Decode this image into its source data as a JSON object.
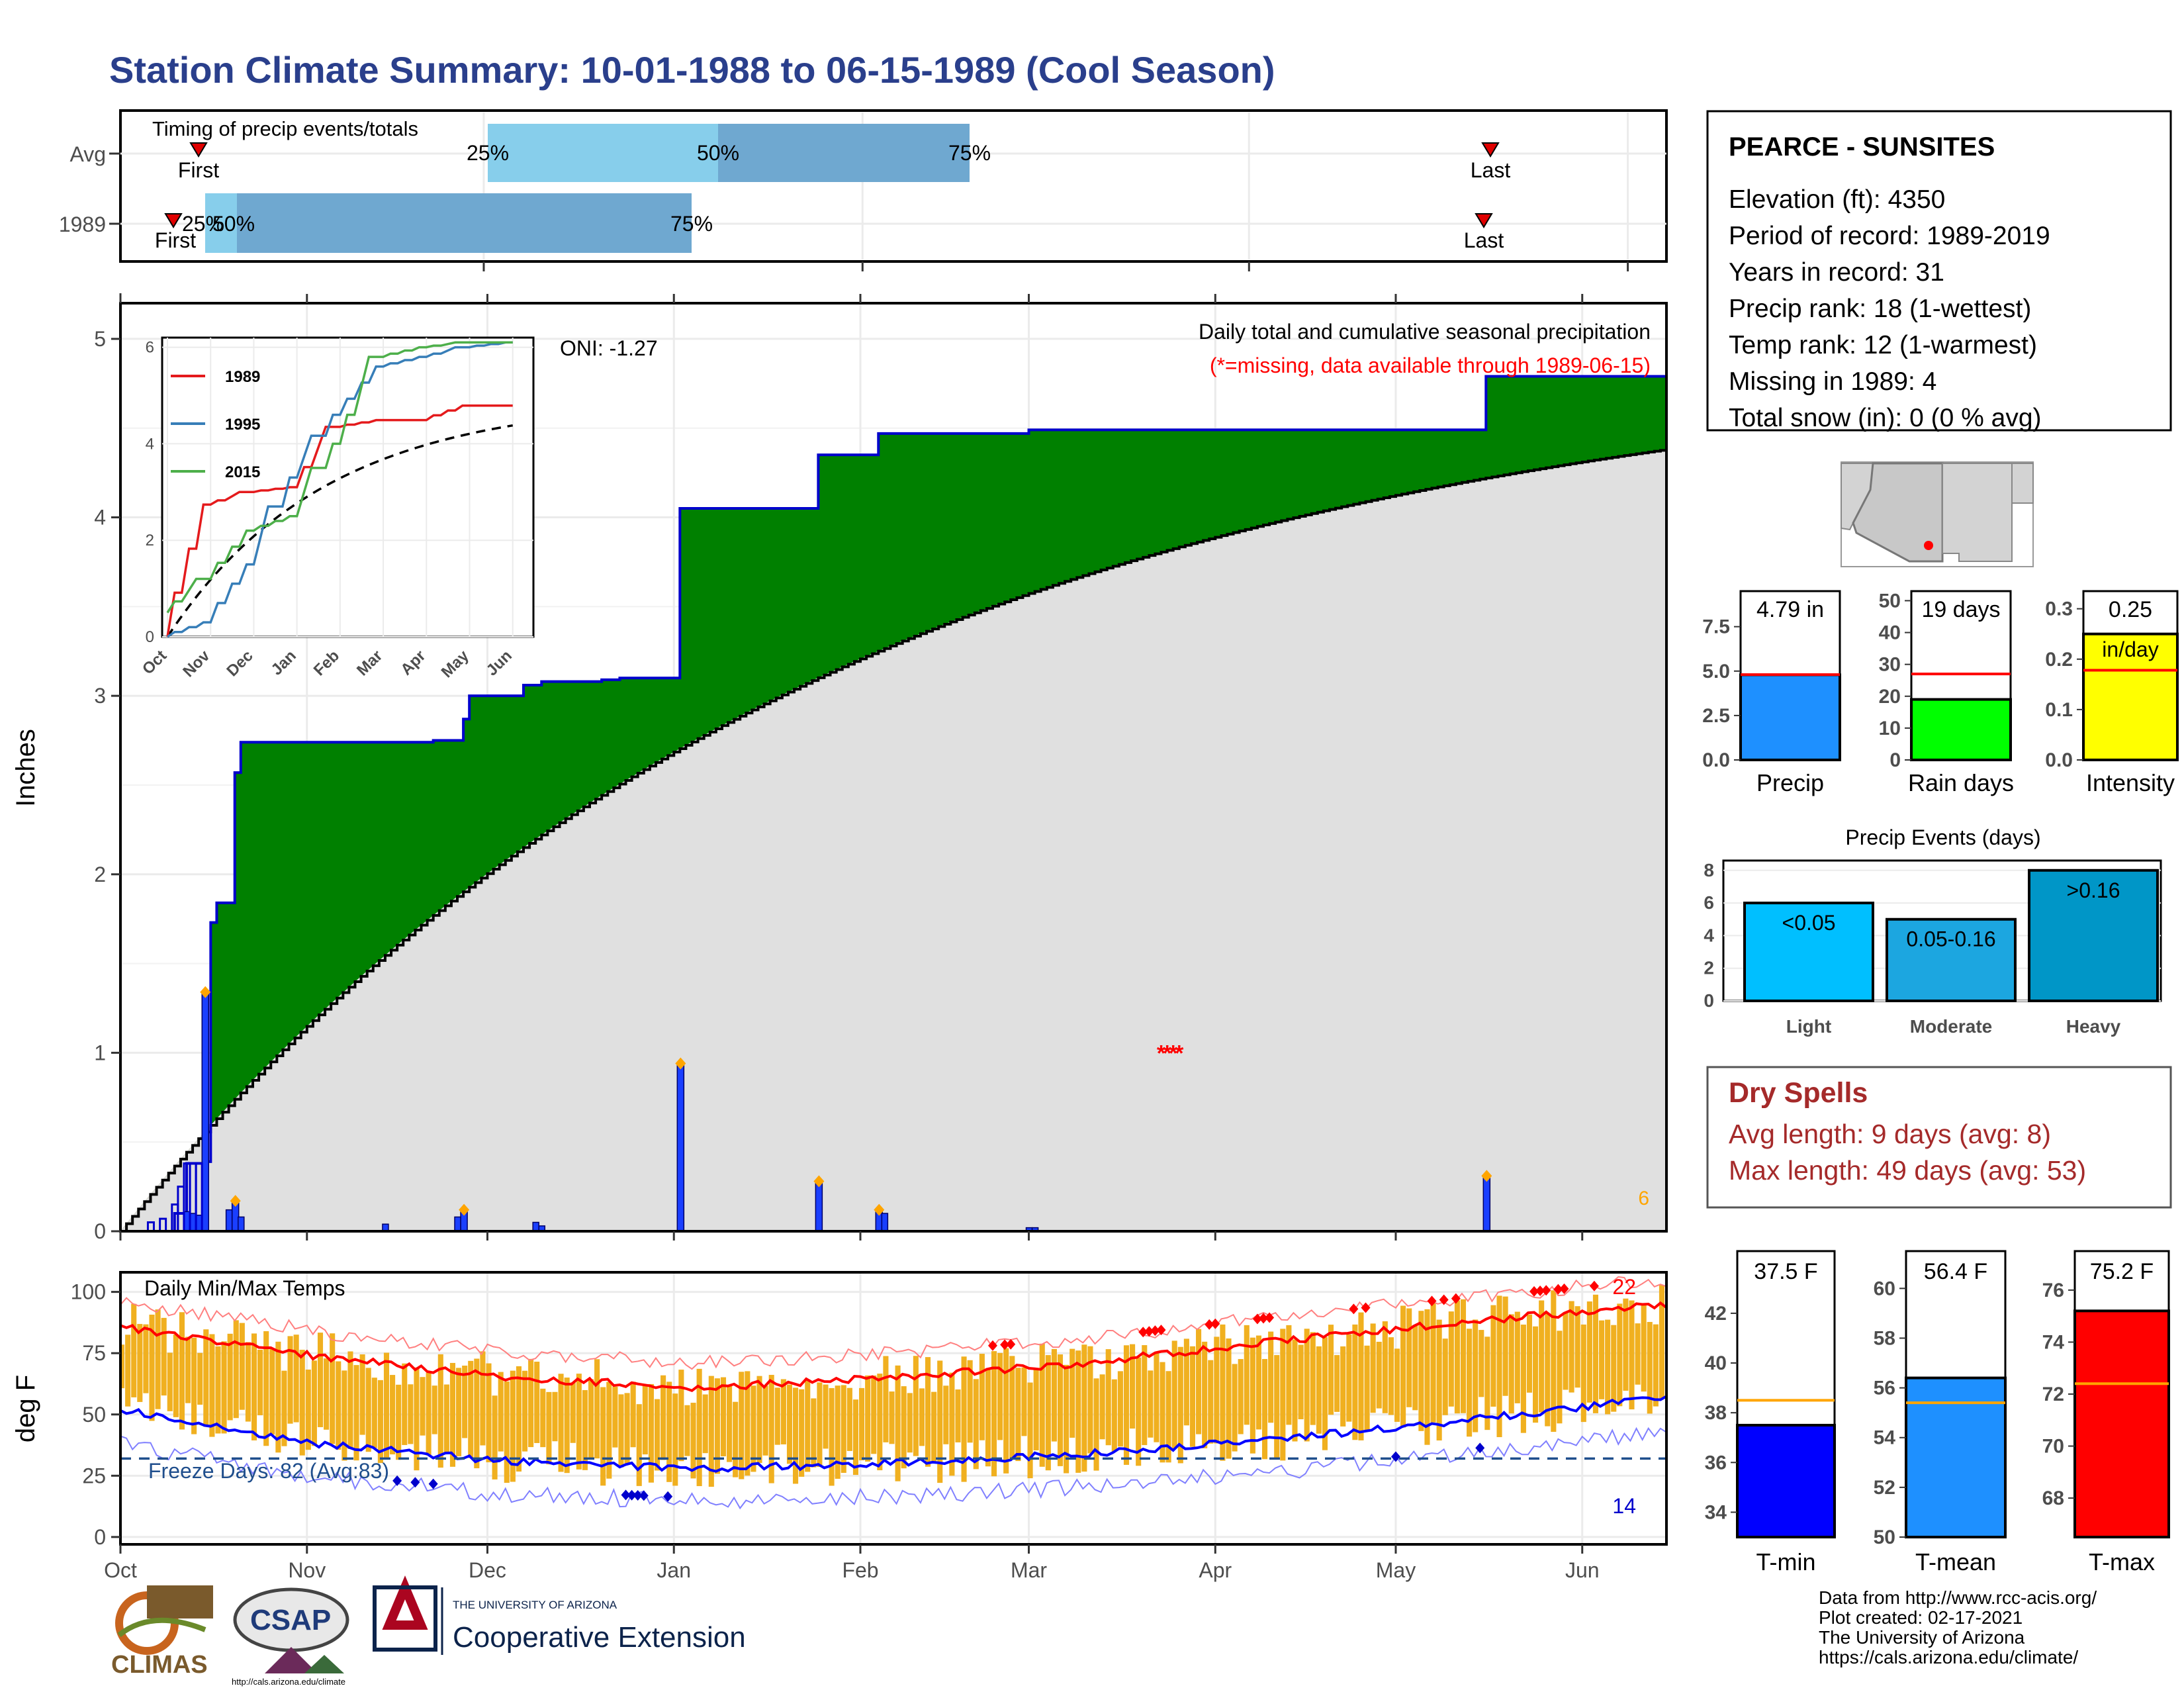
{
  "page": {
    "title": "Station Climate Summary: 10-01-1988 to 06-15-1989 (Cool Season)",
    "title_color": "#2a3f8c"
  },
  "timing": {
    "heading": "Timing of precip events/totals",
    "rows": [
      {
        "label": "Avg",
        "first": "First",
        "last": "Last",
        "p25": "25%",
        "p50": "50%",
        "p75": "75%"
      },
      {
        "label": "1989",
        "first": "First",
        "last": "Last",
        "p25": "25%",
        "p50": "50%",
        "p75": "75%"
      }
    ],
    "colors": {
      "light": "#87ceeb",
      "mid": "#6fa8d0",
      "marker": "#e00000"
    }
  },
  "station": {
    "name": "PEARCE - SUNSITES",
    "lines": [
      "Elevation (ft): 4350",
      "Period of record: 1989-2019",
      "Years in record: 31",
      "Precip rank: 18 (1-wettest)",
      "Temp rank: 12 (1-warmest)",
      "Missing in 1989: 4",
      "Total snow (in): 0 (0 % avg)"
    ]
  },
  "precip_panel": {
    "ylabel": "Inches",
    "note_title": "Daily total and cumulative seasonal precipitation",
    "note_missing": "(*=missing, data available through 1989-06-15)",
    "oni": "ONI: -1.27",
    "corner_count": "6",
    "colors": {
      "observed_fill": "#008000",
      "avg_fill": "#e0e0e0",
      "deficit": "#8b5a1c",
      "bars": "#1a3fff",
      "outline": "#0000cc",
      "missing": "#ff0000",
      "extreme": "#ffa500"
    }
  },
  "inset": {
    "legend": [
      "1989",
      "1995",
      "2015"
    ],
    "colors": [
      "#e41a1c",
      "#377eb8",
      "#4daf4a"
    ]
  },
  "temp_panel": {
    "ylabel": "deg F",
    "title": "Daily Min/Max Temps",
    "freeze_text": "Freeze Days: 82 (Avg:83)",
    "count_hot": "22",
    "count_cold": "14",
    "colors": {
      "bars": "#f0b020",
      "max_line": "#ff0000",
      "min_line": "#0000ff",
      "freeze": "#1f4e8c"
    }
  },
  "stats_bars": [
    {
      "label": "Precip",
      "value_text": "4.79 in",
      "value": 4.79,
      "avg": 4.8,
      "ymax": 9.5,
      "ticks": [
        "0.0",
        "2.5",
        "5.0",
        "7.5"
      ],
      "tickvals": [
        0,
        2.5,
        5,
        7.5
      ],
      "color": "#1e90ff"
    },
    {
      "label": "Rain days",
      "value_text": "19 days",
      "value": 19,
      "avg": 27,
      "ymax": 53,
      "ticks": [
        "0",
        "10",
        "20",
        "30",
        "40",
        "50"
      ],
      "tickvals": [
        0,
        10,
        20,
        30,
        40,
        50
      ],
      "color": "#00ff00"
    },
    {
      "label": "Intensity",
      "value_text": "0.25",
      "value_unit": "in/day",
      "value": 0.25,
      "avg": 0.178,
      "ymax": 0.335,
      "ticks": [
        "0.0",
        "0.1",
        "0.2",
        "0.3"
      ],
      "tickvals": [
        0,
        0.1,
        0.2,
        0.3
      ],
      "color": "#ffff00"
    }
  ],
  "events": {
    "title": "Precip Events (days)",
    "categories": [
      "Light",
      "Moderate",
      "Heavy"
    ],
    "values": [
      6,
      5,
      8
    ],
    "bar_labels": [
      "<0.05",
      "0.05-0.16",
      ">0.16"
    ],
    "ticks": [
      "0",
      "2",
      "4",
      "6",
      "8"
    ],
    "colors": [
      "#00bfff",
      "#1ca6e0",
      "#0096c7"
    ]
  },
  "dry_spells": {
    "title": "Dry Spells",
    "avg_line": "Avg length: 9 days (avg: 8)",
    "max_line": "Max length: 49 days (avg: 53)",
    "color": "#a52a2a"
  },
  "temp_bars": [
    {
      "label": "T-min",
      "value_text": "37.5 F",
      "value": 37.5,
      "avg": 38.5,
      "ymin": 33,
      "ymax": 44.5,
      "ticks": [
        "34",
        "36",
        "38",
        "40",
        "42"
      ],
      "tickvals": [
        34,
        36,
        38,
        40,
        42
      ],
      "color": "#0000ff"
    },
    {
      "label": "T-mean",
      "value_text": "56.4 F",
      "value": 56.4,
      "avg": 55.4,
      "ymin": 50,
      "ymax": 61.5,
      "ticks": [
        "50",
        "52",
        "54",
        "56",
        "58",
        "60"
      ],
      "tickvals": [
        50,
        52,
        54,
        56,
        58,
        60
      ],
      "color": "#1e90ff"
    },
    {
      "label": "T-max",
      "value_text": "75.2 F",
      "value": 75.2,
      "avg": 72.4,
      "ymin": 66.5,
      "ymax": 77.5,
      "ticks": [
        "68",
        "70",
        "72",
        "74",
        "76"
      ],
      "tickvals": [
        68,
        70,
        72,
        74,
        76
      ],
      "color": "#ff0000"
    }
  ],
  "footer": {
    "lines": [
      "Data from http://www.rcc-acis.org/",
      "Plot created: 02-17-2021",
      "The University of Arizona",
      "https://cals.arizona.edu/climate/"
    ],
    "logo_climas": "CLIMAS",
    "logo_csap": "CSAP",
    "logo_csap_url": "http://cals.arizona.edu/climate",
    "ua_small": "THE UNIVERSITY OF ARIZONA",
    "ua_big": "Cooperative Extension"
  },
  "chart_data": [
    {
      "type": "area",
      "title": "Daily total and cumulative seasonal precipitation",
      "ylabel": "Inches",
      "x_ticks": [
        "Oct",
        "Nov",
        "Dec",
        "Jan",
        "Feb",
        "Mar",
        "Apr",
        "May",
        "Jun"
      ],
      "ylim": [
        0,
        5.2
      ],
      "y_ticks": [
        0,
        1,
        2,
        3,
        4,
        5
      ],
      "series": [
        {
          "name": "1989",
          "points": [
            [
              "10-01",
              0
            ],
            [
              "10-10",
              0.1
            ],
            [
              "10-12",
              0.38
            ],
            [
              "10-15",
              0.39
            ],
            [
              "10-16",
              1.73
            ],
            [
              "10-17",
              1.84
            ],
            [
              "10-20",
              2.57
            ],
            [
              "10-21",
              2.74
            ],
            [
              "11-22",
              2.75
            ],
            [
              "11-27",
              2.87
            ],
            [
              "11-28",
              3.0
            ],
            [
              "12-07",
              3.06
            ],
            [
              "12-10",
              3.08
            ],
            [
              "12-20",
              3.09
            ],
            [
              "12-23",
              3.1
            ],
            [
              "01-02",
              4.05
            ],
            [
              "01-25",
              4.35
            ],
            [
              "02-04",
              4.47
            ],
            [
              "03-01",
              4.49
            ],
            [
              "05-16",
              4.79
            ],
            [
              "06-15",
              4.79
            ]
          ]
        }
      ],
      "daily_bars": [
        {
          "x": "10-15",
          "y": 1.34
        },
        {
          "x": "10-20",
          "y": 0.17
        },
        {
          "x": "11-27",
          "y": 0.12
        },
        {
          "x": "01-02",
          "y": 0.94
        },
        {
          "x": "01-25",
          "y": 0.28
        },
        {
          "x": "02-04",
          "y": 0.12
        },
        {
          "x": "05-16",
          "y": 0.31
        }
      ],
      "missing_days": [
        "03-23",
        "03-24",
        "03-25",
        "03-26"
      ],
      "oni": -1.27
    },
    {
      "type": "line",
      "title": "inset cumulative precipitation",
      "x_ticks": [
        "Oct",
        "Nov",
        "Dec",
        "Jan",
        "Feb",
        "Mar",
        "Apr",
        "May",
        "Jun"
      ],
      "y_ticks": [
        0,
        2,
        4,
        6
      ],
      "ylim": [
        0,
        6.2
      ],
      "series": [
        {
          "name": "1989",
          "values": [
            0,
            2.74,
            3.0,
            3.1,
            4.35,
            4.49,
            4.49,
            4.79,
            4.79
          ]
        },
        {
          "name": "1995",
          "values": [
            0,
            0.3,
            1.5,
            3.3,
            4.6,
            5.6,
            5.8,
            6.0,
            6.1
          ]
        },
        {
          "name": "2015",
          "values": [
            0.5,
            1.2,
            2.2,
            2.5,
            4.0,
            5.8,
            6.0,
            6.1,
            6.1
          ]
        }
      ]
    },
    {
      "type": "bar",
      "title": "Daily Min/Max Temps",
      "ylabel": "deg F",
      "x_ticks": [
        "Oct",
        "Nov",
        "Dec",
        "Jan",
        "Feb",
        "Mar",
        "Apr",
        "May",
        "Jun"
      ],
      "ylim": [
        -3,
        108
      ],
      "y_ticks": [
        0,
        25,
        50,
        75,
        100
      ],
      "avg_max_monthly": [
        86,
        74,
        65,
        61,
        65,
        71,
        80,
        88,
        95
      ],
      "avg_min_monthly": [
        52,
        38,
        31,
        28,
        30,
        34,
        40,
        48,
        57
      ],
      "freeze_line": 32,
      "freeze_days": 82,
      "freeze_days_avg": 83
    }
  ]
}
